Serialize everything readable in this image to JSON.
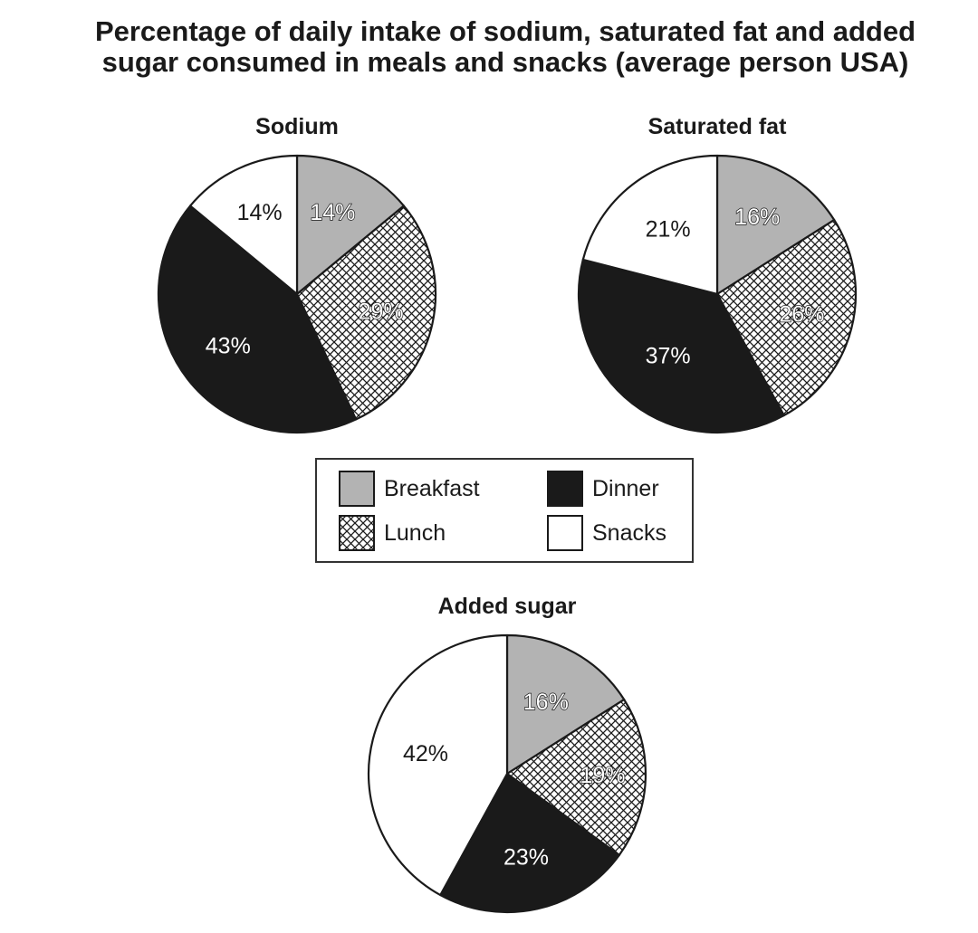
{
  "chart_data": {
    "type": "pie",
    "title": "Percentage of daily intake of sodium, saturated fat and added sugar consumed in meals and snacks (average person USA)",
    "title_lines": [
      "Percentage of daily intake of sodium, saturated fat and added",
      "sugar consumed in meals and snacks (average person USA)"
    ],
    "legend": {
      "placement": "center",
      "entries": [
        "Breakfast",
        "Dinner",
        "Lunch",
        "Snacks"
      ]
    },
    "categories": [
      "Breakfast",
      "Lunch",
      "Dinner",
      "Snacks"
    ],
    "fills": {
      "Breakfast": "#b3b3b3",
      "Lunch": "crosshatch",
      "Dinner": "#1a1a1a",
      "Snacks": "#ffffff"
    },
    "pies": [
      {
        "name": "Sodium",
        "slices": [
          {
            "category": "Breakfast",
            "value": 14,
            "label": "14%"
          },
          {
            "category": "Lunch",
            "value": 29,
            "label": "29%"
          },
          {
            "category": "Dinner",
            "value": 43,
            "label": "43%"
          },
          {
            "category": "Snacks",
            "value": 14,
            "label": "14%"
          }
        ]
      },
      {
        "name": "Saturated fat",
        "slices": [
          {
            "category": "Breakfast",
            "value": 16,
            "label": "16%"
          },
          {
            "category": "Lunch",
            "value": 26,
            "label": "26%"
          },
          {
            "category": "Dinner",
            "value": 37,
            "label": "37%"
          },
          {
            "category": "Snacks",
            "value": 21,
            "label": "21%"
          }
        ]
      },
      {
        "name": "Added sugar",
        "slices": [
          {
            "category": "Breakfast",
            "value": 16,
            "label": "16%"
          },
          {
            "category": "Lunch",
            "value": 19,
            "label": "19%"
          },
          {
            "category": "Dinner",
            "value": 23,
            "label": "23%"
          },
          {
            "category": "Snacks",
            "value": 42,
            "label": "42%"
          }
        ]
      }
    ]
  }
}
